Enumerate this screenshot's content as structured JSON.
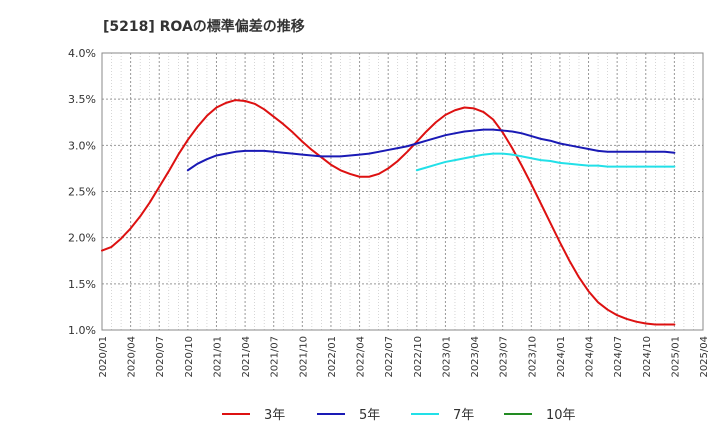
{
  "chart_data": {
    "type": "line",
    "title": "[5218]  ROAの標準偏差の推移",
    "xlabel": "",
    "ylabel": "",
    "ylim": [
      1.0,
      4.0
    ],
    "yticks": [
      1.0,
      1.5,
      2.0,
      2.5,
      3.0,
      3.5,
      4.0
    ],
    "ytick_labels": [
      "1.0%",
      "1.5%",
      "2.0%",
      "2.5%",
      "3.0%",
      "3.5%",
      "4.0%"
    ],
    "xticks": [
      "2020/01",
      "2020/04",
      "2020/07",
      "2020/10",
      "2021/01",
      "2021/04",
      "2021/07",
      "2021/10",
      "2022/01",
      "2022/04",
      "2022/07",
      "2022/10",
      "2023/01",
      "2023/04",
      "2023/07",
      "2023/10",
      "2024/01",
      "2024/04",
      "2024/07",
      "2024/10",
      "2025/01",
      "2025/04"
    ],
    "grid": true,
    "legend_position": "bottom",
    "series": [
      {
        "name": "3年",
        "color": "#dd1111",
        "points": [
          [
            "2020/01",
            1.86
          ],
          [
            "2020/02",
            1.9
          ],
          [
            "2020/03",
            1.99
          ],
          [
            "2020/04",
            2.1
          ],
          [
            "2020/05",
            2.23
          ],
          [
            "2020/06",
            2.38
          ],
          [
            "2020/07",
            2.55
          ],
          [
            "2020/08",
            2.72
          ],
          [
            "2020/09",
            2.9
          ],
          [
            "2020/10",
            3.06
          ],
          [
            "2020/11",
            3.2
          ],
          [
            "2020/12",
            3.32
          ],
          [
            "2021/01",
            3.41
          ],
          [
            "2021/02",
            3.46
          ],
          [
            "2021/03",
            3.49
          ],
          [
            "2021/04",
            3.48
          ],
          [
            "2021/05",
            3.45
          ],
          [
            "2021/06",
            3.39
          ],
          [
            "2021/07",
            3.31
          ],
          [
            "2021/08",
            3.23
          ],
          [
            "2021/09",
            3.14
          ],
          [
            "2021/10",
            3.04
          ],
          [
            "2021/11",
            2.95
          ],
          [
            "2021/12",
            2.87
          ],
          [
            "2022/01",
            2.79
          ],
          [
            "2022/02",
            2.73
          ],
          [
            "2022/03",
            2.69
          ],
          [
            "2022/04",
            2.66
          ],
          [
            "2022/05",
            2.66
          ],
          [
            "2022/06",
            2.69
          ],
          [
            "2022/07",
            2.75
          ],
          [
            "2022/08",
            2.83
          ],
          [
            "2022/09",
            2.93
          ],
          [
            "2022/10",
            3.04
          ],
          [
            "2022/11",
            3.15
          ],
          [
            "2022/12",
            3.25
          ],
          [
            "2023/01",
            3.33
          ],
          [
            "2023/02",
            3.38
          ],
          [
            "2023/03",
            3.41
          ],
          [
            "2023/04",
            3.4
          ],
          [
            "2023/05",
            3.36
          ],
          [
            "2023/06",
            3.28
          ],
          [
            "2023/07",
            3.14
          ],
          [
            "2023/08",
            2.97
          ],
          [
            "2023/09",
            2.78
          ],
          [
            "2023/10",
            2.58
          ],
          [
            "2023/11",
            2.37
          ],
          [
            "2023/12",
            2.16
          ],
          [
            "2024/01",
            1.95
          ],
          [
            "2024/02",
            1.75
          ],
          [
            "2024/03",
            1.57
          ],
          [
            "2024/04",
            1.42
          ],
          [
            "2024/05",
            1.3
          ],
          [
            "2024/06",
            1.22
          ],
          [
            "2024/07",
            1.16
          ],
          [
            "2024/08",
            1.12
          ],
          [
            "2024/09",
            1.09
          ],
          [
            "2024/10",
            1.07
          ],
          [
            "2024/11",
            1.06
          ],
          [
            "2024/12",
            1.06
          ],
          [
            "2025/01",
            1.06
          ]
        ]
      },
      {
        "name": "5年",
        "color": "#1a1ab5",
        "points": [
          [
            "2020/10",
            2.73
          ],
          [
            "2020/11",
            2.8
          ],
          [
            "2020/12",
            2.85
          ],
          [
            "2021/01",
            2.89
          ],
          [
            "2021/02",
            2.91
          ],
          [
            "2021/03",
            2.93
          ],
          [
            "2021/04",
            2.94
          ],
          [
            "2021/05",
            2.94
          ],
          [
            "2021/06",
            2.94
          ],
          [
            "2021/07",
            2.93
          ],
          [
            "2021/08",
            2.92
          ],
          [
            "2021/09",
            2.91
          ],
          [
            "2021/10",
            2.9
          ],
          [
            "2021/11",
            2.89
          ],
          [
            "2021/12",
            2.88
          ],
          [
            "2022/01",
            2.88
          ],
          [
            "2022/02",
            2.88
          ],
          [
            "2022/03",
            2.89
          ],
          [
            "2022/04",
            2.9
          ],
          [
            "2022/05",
            2.91
          ],
          [
            "2022/06",
            2.93
          ],
          [
            "2022/07",
            2.95
          ],
          [
            "2022/08",
            2.97
          ],
          [
            "2022/09",
            2.99
          ],
          [
            "2022/10",
            3.02
          ],
          [
            "2022/11",
            3.05
          ],
          [
            "2022/12",
            3.08
          ],
          [
            "2023/01",
            3.11
          ],
          [
            "2023/02",
            3.13
          ],
          [
            "2023/03",
            3.15
          ],
          [
            "2023/04",
            3.16
          ],
          [
            "2023/05",
            3.17
          ],
          [
            "2023/06",
            3.17
          ],
          [
            "2023/07",
            3.16
          ],
          [
            "2023/08",
            3.15
          ],
          [
            "2023/09",
            3.13
          ],
          [
            "2023/10",
            3.1
          ],
          [
            "2023/11",
            3.07
          ],
          [
            "2023/12",
            3.05
          ],
          [
            "2024/01",
            3.02
          ],
          [
            "2024/02",
            3.0
          ],
          [
            "2024/03",
            2.98
          ],
          [
            "2024/04",
            2.96
          ],
          [
            "2024/05",
            2.94
          ],
          [
            "2024/06",
            2.93
          ],
          [
            "2024/07",
            2.93
          ],
          [
            "2024/08",
            2.93
          ],
          [
            "2024/09",
            2.93
          ],
          [
            "2024/10",
            2.93
          ],
          [
            "2024/11",
            2.93
          ],
          [
            "2024/12",
            2.93
          ],
          [
            "2025/01",
            2.92
          ]
        ]
      },
      {
        "name": "7年",
        "color": "#22e0e8",
        "points": [
          [
            "2022/10",
            2.73
          ],
          [
            "2022/11",
            2.76
          ],
          [
            "2022/12",
            2.79
          ],
          [
            "2023/01",
            2.82
          ],
          [
            "2023/02",
            2.84
          ],
          [
            "2023/03",
            2.86
          ],
          [
            "2023/04",
            2.88
          ],
          [
            "2023/05",
            2.9
          ],
          [
            "2023/06",
            2.91
          ],
          [
            "2023/07",
            2.91
          ],
          [
            "2023/08",
            2.9
          ],
          [
            "2023/09",
            2.88
          ],
          [
            "2023/10",
            2.86
          ],
          [
            "2023/11",
            2.84
          ],
          [
            "2023/12",
            2.83
          ],
          [
            "2024/01",
            2.81
          ],
          [
            "2024/02",
            2.8
          ],
          [
            "2024/03",
            2.79
          ],
          [
            "2024/04",
            2.78
          ],
          [
            "2024/05",
            2.78
          ],
          [
            "2024/06",
            2.77
          ],
          [
            "2024/07",
            2.77
          ],
          [
            "2024/08",
            2.77
          ],
          [
            "2024/09",
            2.77
          ],
          [
            "2024/10",
            2.77
          ],
          [
            "2024/11",
            2.77
          ],
          [
            "2024/12",
            2.77
          ],
          [
            "2025/01",
            2.77
          ]
        ]
      },
      {
        "name": "10年",
        "color": "#228b22",
        "points": []
      }
    ]
  }
}
